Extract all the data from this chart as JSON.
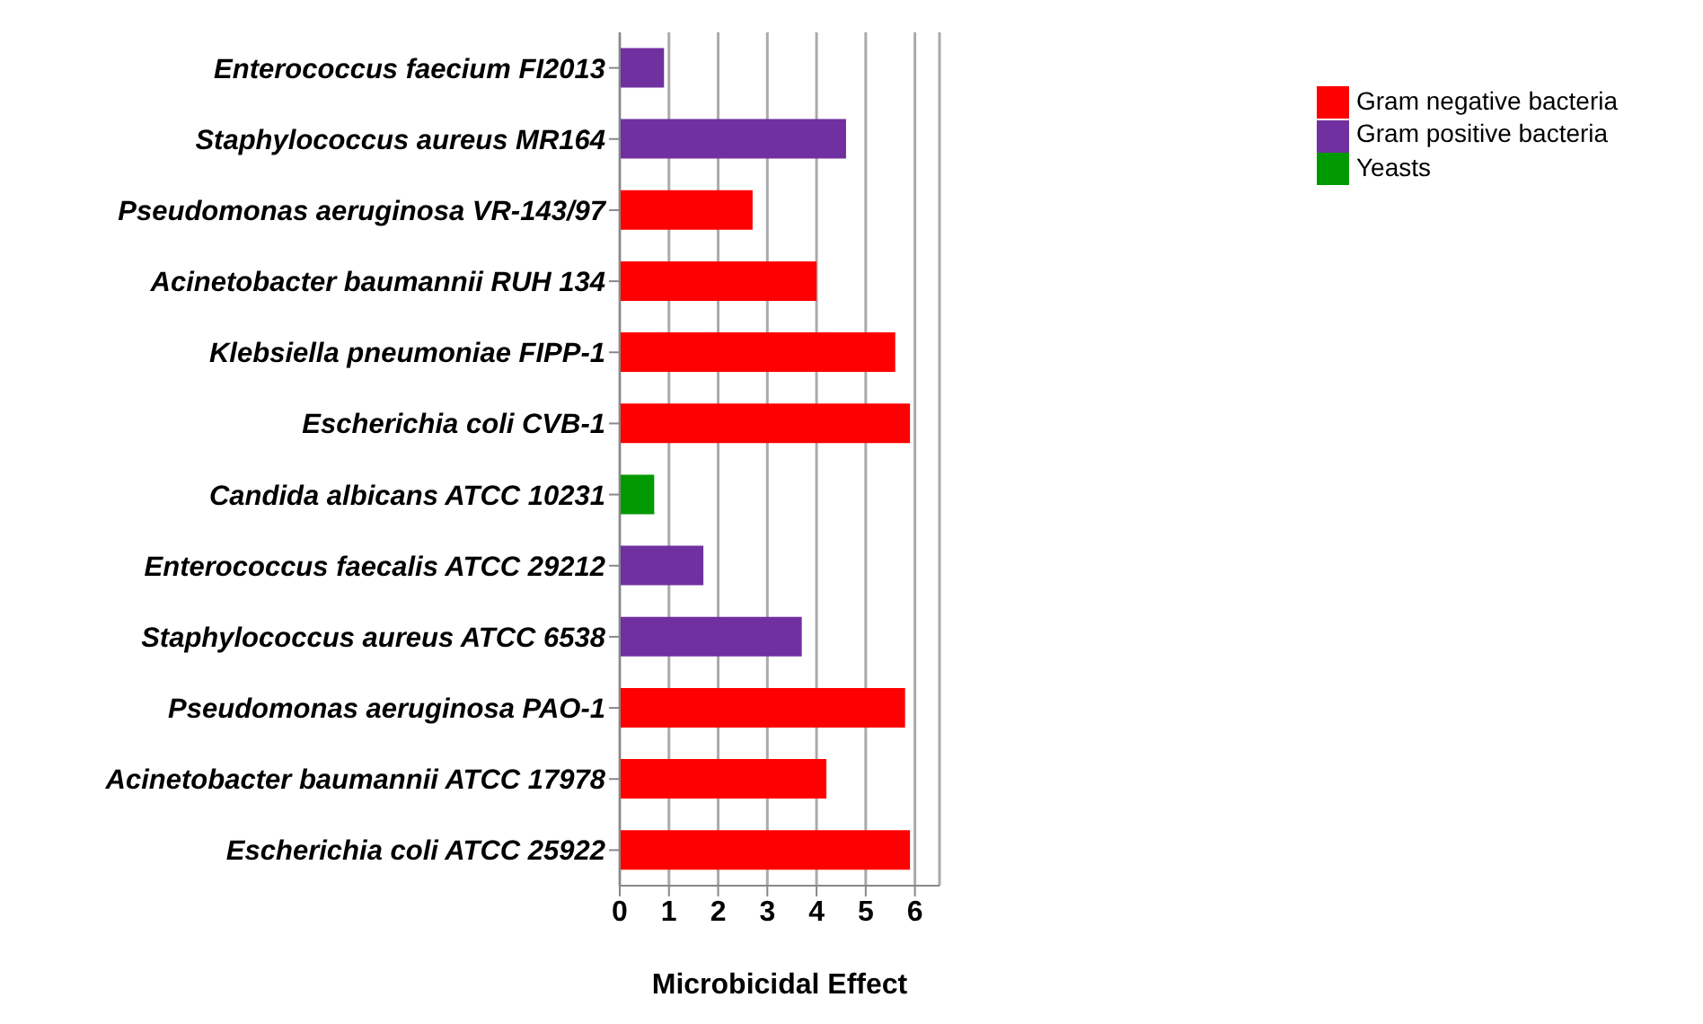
{
  "chart_data": {
    "type": "bar",
    "orientation": "horizontal",
    "stacked": true,
    "xlabel": "Microbicidal Effect",
    "categories": [
      "Enterococcus faecium FI2013",
      "Staphylococcus aureus MR164",
      "Pseudomonas aeruginosa VR-143/97",
      "Acinetobacter baumannii RUH 134",
      "Klebsiella pneumoniae FIPP-1",
      "Escherichia coli CVB-1",
      "Candida albicans ATCC 10231",
      "Enterococcus faecalis ATCC 29212",
      "Staphylococcus aureus ATCC 6538",
      "Pseudomonas aeruginosa PAO-1",
      "Acinetobacter baumannii ATCC 17978",
      "Escherichia coli ATCC 25922"
    ],
    "series": [
      {
        "name": "Gram negative bacteria",
        "color": "#ff0000",
        "values": [
          null,
          null,
          2.7,
          4.0,
          5.6,
          5.9,
          null,
          null,
          null,
          5.8,
          4.2,
          5.9
        ]
      },
      {
        "name": "Gram positive bacteria",
        "color": "#7030a0",
        "values": [
          0.9,
          4.6,
          null,
          null,
          null,
          null,
          null,
          1.7,
          3.7,
          null,
          null,
          null
        ]
      },
      {
        "name": "Yeasts",
        "color": "#009900",
        "values": [
          null,
          null,
          null,
          null,
          null,
          null,
          0.7,
          null,
          null,
          null,
          null,
          null
        ]
      }
    ],
    "xlim": [
      0,
      6.5
    ],
    "xticks": [
      0,
      1,
      2,
      3,
      4,
      5,
      6
    ],
    "grid": "x",
    "legend": "top right"
  }
}
